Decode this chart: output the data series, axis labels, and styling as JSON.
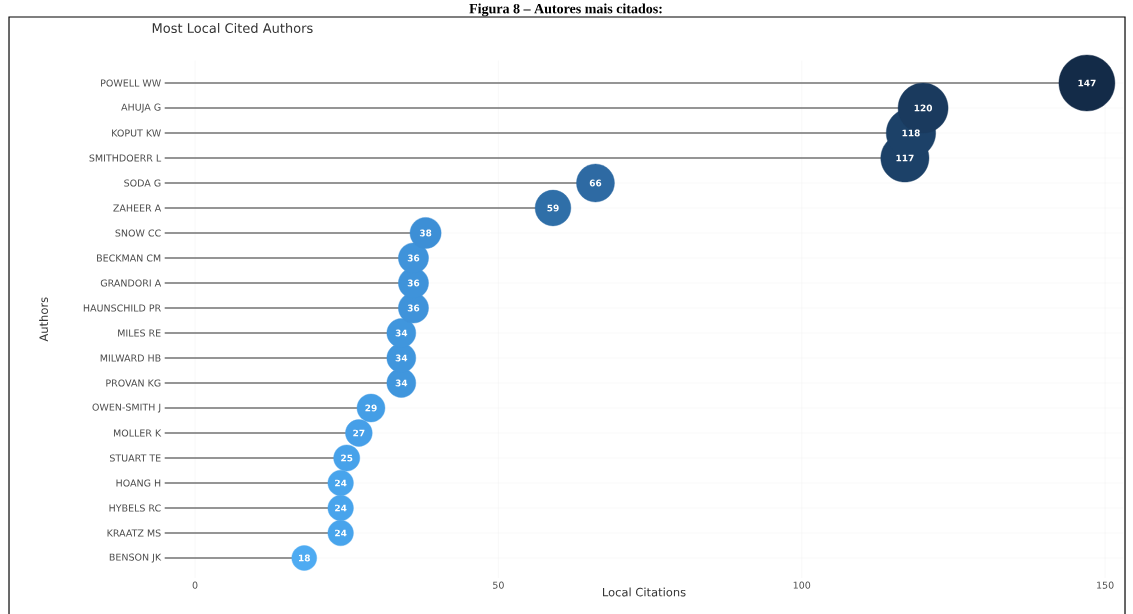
{
  "chart_data": {
    "type": "lollipop",
    "title": "Most Local Cited Authors",
    "xlabel": "Local Citations",
    "ylabel": "Authors",
    "annotations": [
      "Figura 8 – Autores mais citados:"
    ],
    "categories": [
      "POWELL WW",
      "AHUJA G",
      "KOPUT KW",
      "SMITHDOERR L",
      "SODA G",
      "ZAHEER A",
      "SNOW CC",
      "BECKMAN CM",
      "GRANDORI A",
      "HAUNSCHILD PR",
      "MILES RE",
      "MILWARD HB",
      "PROVAN KG",
      "OWEN-SMITH J",
      "MOLLER K",
      "STUART TE",
      "HOANG H",
      "HYBELS RC",
      "KRAATZ MS",
      "BENSON JK"
    ],
    "values": [
      147,
      120,
      118,
      117,
      66,
      59,
      38,
      36,
      36,
      36,
      34,
      34,
      34,
      29,
      27,
      25,
      24,
      24,
      24,
      18
    ],
    "colors": [
      "#132b48",
      "#1a3a5e",
      "#1c4168",
      "#1c4168",
      "#2e6aa3",
      "#2f6fa8",
      "#3d8fd6",
      "#3f93da",
      "#3f93da",
      "#3f93da",
      "#4096dd",
      "#4096dd",
      "#4096dd",
      "#449ee6",
      "#469fe8",
      "#47a2ea",
      "#48a4ec",
      "#48a4ec",
      "#48a4ec",
      "#4eabf2"
    ],
    "sizes": [
      1,
      0.8,
      0.78,
      0.74,
      0.46,
      0.41,
      0.31,
      0.29,
      0.29,
      0.29,
      0.27,
      0.27,
      0.27,
      0.25,
      0.23,
      0.22,
      0.21,
      0.21,
      0.21,
      0.2
    ],
    "value_labels": [
      "147",
      "120",
      "118",
      "117",
      "66",
      "59",
      "38",
      "36",
      "36",
      "36",
      "34",
      "34",
      "34",
      "29",
      "27",
      "25",
      "24",
      "24",
      "24",
      "18"
    ],
    "xlim": [
      -5,
      153
    ],
    "xticks": [
      {
        "value": 0,
        "label": "0"
      },
      {
        "value": 50,
        "label": "50"
      },
      {
        "value": 100,
        "label": "100"
      },
      {
        "value": 150,
        "label": "150"
      }
    ],
    "grid": true,
    "orientation": "horizontal"
  }
}
